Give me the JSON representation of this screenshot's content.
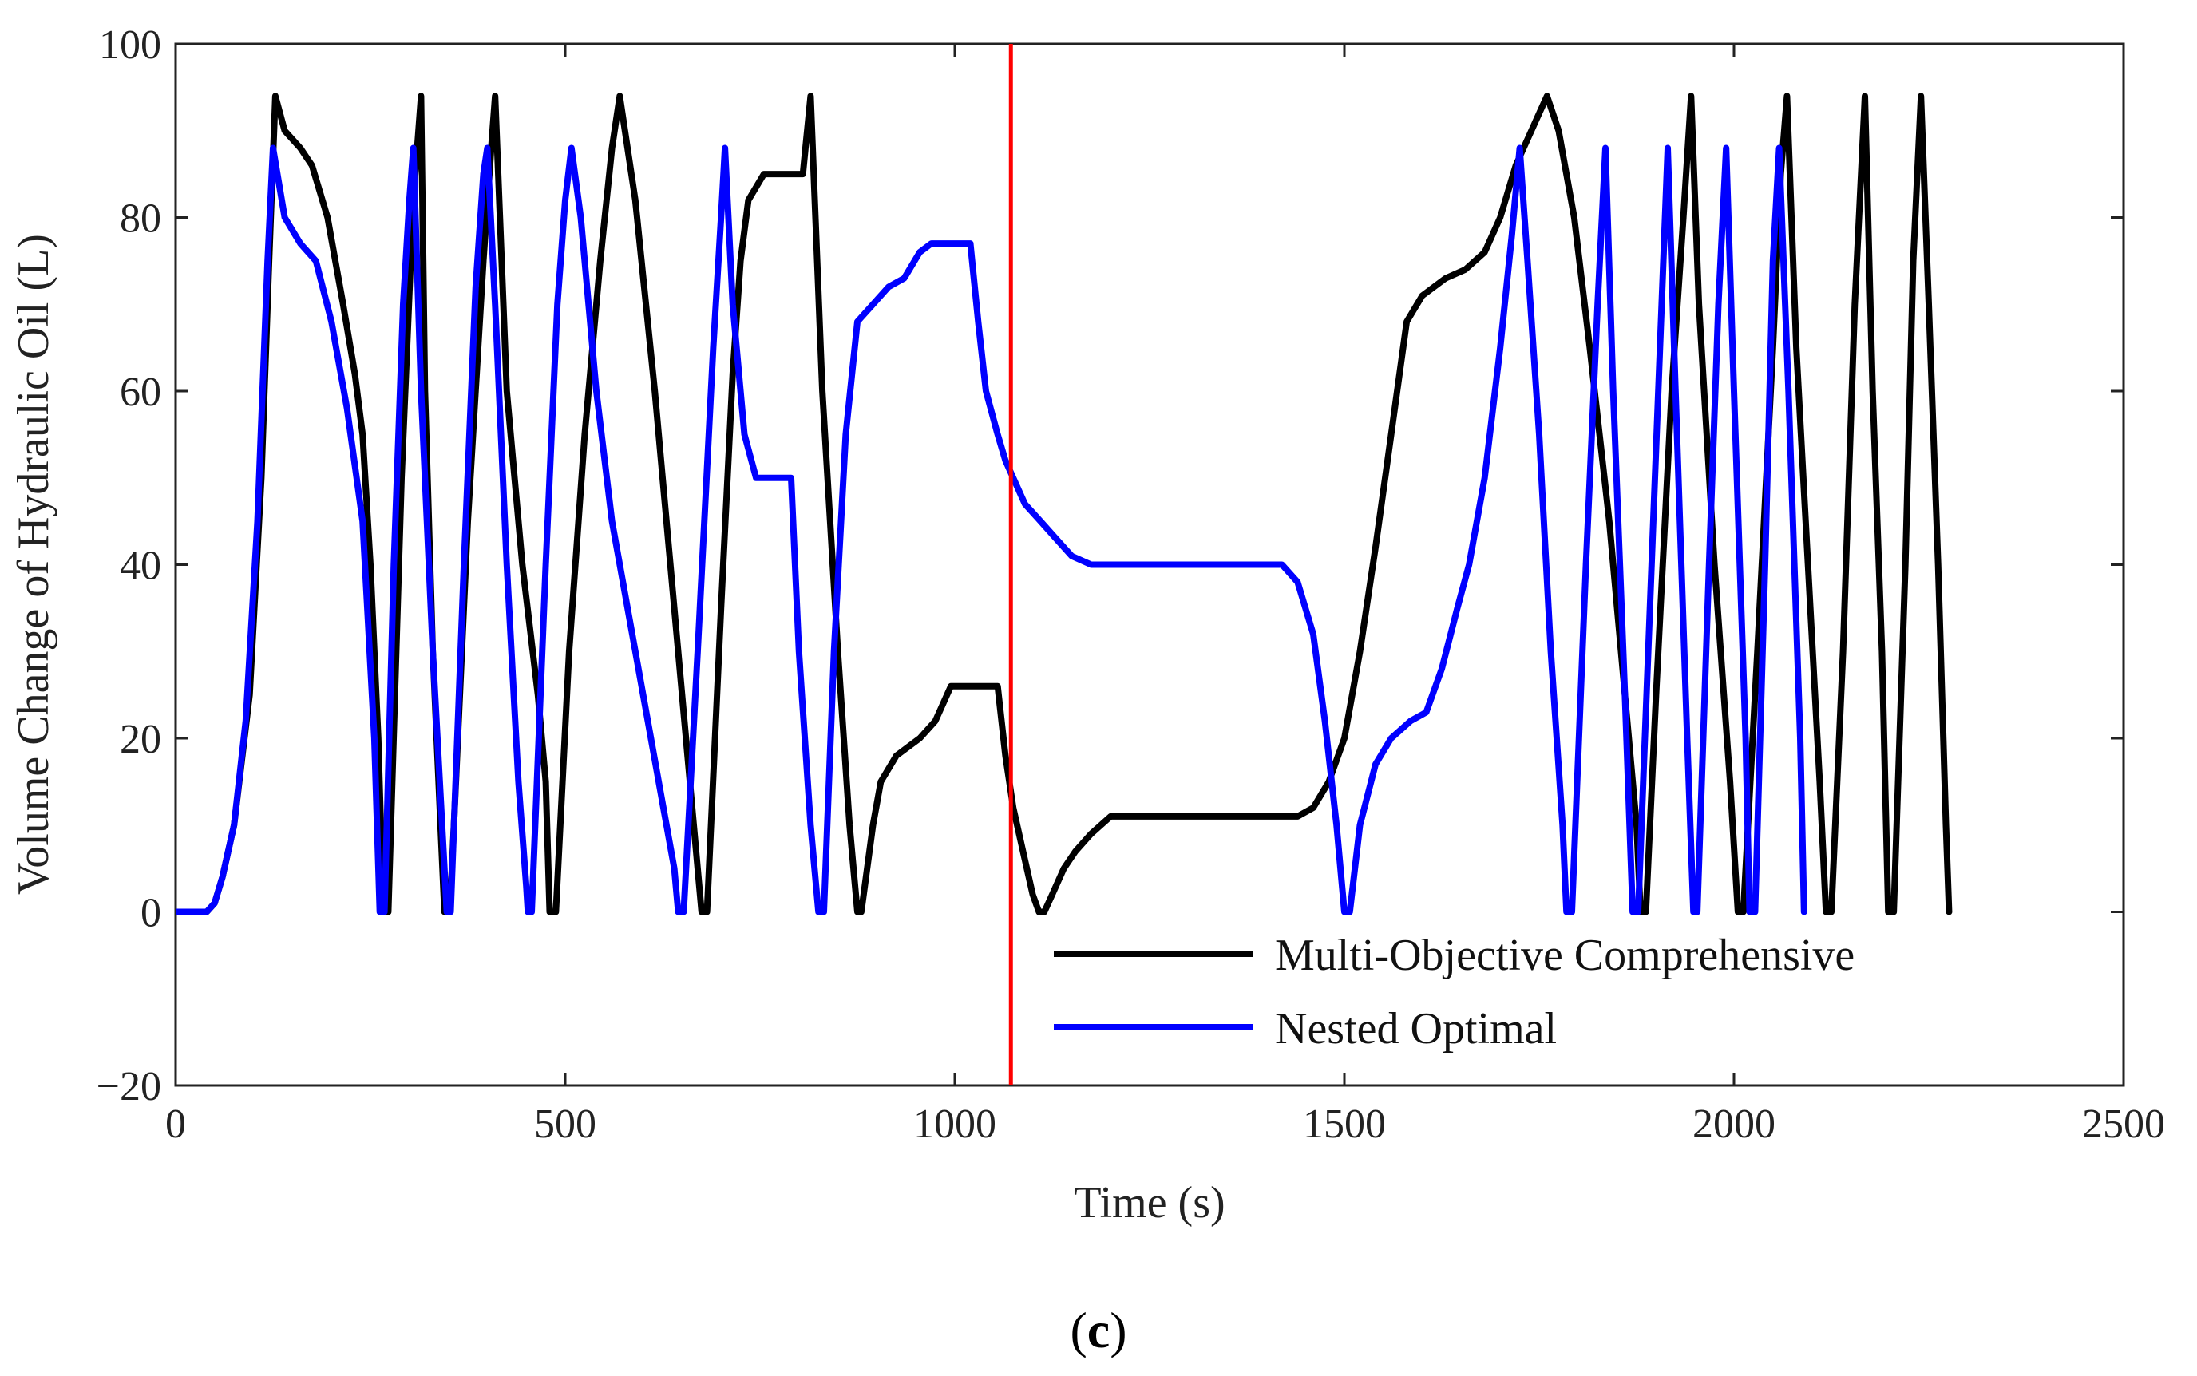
{
  "chart_data": {
    "type": "line",
    "title": "",
    "xlabel": "Time (s)",
    "ylabel": "Volume Change of Hydraulic Oil (L)",
    "xlim": [
      0,
      2500
    ],
    "ylim": [
      -20,
      100
    ],
    "xticks": [
      0,
      500,
      1000,
      1500,
      2000,
      2500
    ],
    "yticks": [
      -20,
      0,
      20,
      40,
      60,
      80,
      100
    ],
    "xtick_labels": [
      "0",
      "500",
      "1000",
      "1500",
      "2000",
      "2500"
    ],
    "ytick_labels": [
      "−20",
      "0",
      "20",
      "40",
      "60",
      "80",
      "100"
    ],
    "grid": false,
    "legend_position": "bottom-right",
    "vline": {
      "x": 1072,
      "color": "#ff0000"
    },
    "caption_bold": "c",
    "caption_parts": [
      "(",
      ")"
    ],
    "series": [
      {
        "name": "Multi-Objective Comprehensive",
        "color": "#000000",
        "points": [
          [
            0,
            0
          ],
          [
            40,
            0
          ],
          [
            50,
            1
          ],
          [
            60,
            4
          ],
          [
            75,
            10
          ],
          [
            95,
            25
          ],
          [
            110,
            50
          ],
          [
            120,
            75
          ],
          [
            128,
            94
          ],
          [
            140,
            90
          ],
          [
            160,
            88
          ],
          [
            175,
            86
          ],
          [
            195,
            80
          ],
          [
            215,
            70
          ],
          [
            230,
            62
          ],
          [
            240,
            55
          ],
          [
            250,
            40
          ],
          [
            260,
            20
          ],
          [
            265,
            5
          ],
          [
            268,
            0
          ],
          [
            273,
            0
          ],
          [
            290,
            50
          ],
          [
            305,
            82
          ],
          [
            315,
            94
          ],
          [
            320,
            60
          ],
          [
            330,
            30
          ],
          [
            340,
            10
          ],
          [
            345,
            0
          ],
          [
            352,
            0
          ],
          [
            375,
            45
          ],
          [
            395,
            75
          ],
          [
            405,
            88
          ],
          [
            410,
            94
          ],
          [
            425,
            60
          ],
          [
            445,
            40
          ],
          [
            465,
            25
          ],
          [
            475,
            15
          ],
          [
            480,
            0
          ],
          [
            488,
            0
          ],
          [
            505,
            30
          ],
          [
            525,
            55
          ],
          [
            545,
            75
          ],
          [
            560,
            88
          ],
          [
            570,
            94
          ],
          [
            590,
            82
          ],
          [
            615,
            60
          ],
          [
            640,
            35
          ],
          [
            665,
            10
          ],
          [
            675,
            0
          ],
          [
            682,
            0
          ],
          [
            700,
            35
          ],
          [
            715,
            62
          ],
          [
            725,
            75
          ],
          [
            735,
            82
          ],
          [
            755,
            85
          ],
          [
            790,
            85
          ],
          [
            805,
            85
          ],
          [
            815,
            94
          ],
          [
            830,
            60
          ],
          [
            850,
            30
          ],
          [
            865,
            10
          ],
          [
            875,
            0
          ],
          [
            880,
            0
          ],
          [
            895,
            10
          ],
          [
            905,
            15
          ],
          [
            925,
            18
          ],
          [
            955,
            20
          ],
          [
            975,
            22
          ],
          [
            995,
            26
          ],
          [
            1015,
            26
          ],
          [
            1040,
            26
          ],
          [
            1055,
            26
          ],
          [
            1065,
            18
          ],
          [
            1075,
            12
          ],
          [
            1090,
            6
          ],
          [
            1100,
            2
          ],
          [
            1108,
            0
          ],
          [
            1115,
            0
          ],
          [
            1125,
            2
          ],
          [
            1140,
            5
          ],
          [
            1155,
            7
          ],
          [
            1175,
            9
          ],
          [
            1200,
            11
          ],
          [
            1230,
            11
          ],
          [
            1300,
            11
          ],
          [
            1400,
            11
          ],
          [
            1440,
            11
          ],
          [
            1460,
            12
          ],
          [
            1480,
            15
          ],
          [
            1500,
            20
          ],
          [
            1520,
            30
          ],
          [
            1540,
            42
          ],
          [
            1560,
            55
          ],
          [
            1580,
            68
          ],
          [
            1600,
            71
          ],
          [
            1630,
            73
          ],
          [
            1655,
            74
          ],
          [
            1680,
            76
          ],
          [
            1700,
            80
          ],
          [
            1720,
            86
          ],
          [
            1745,
            91
          ],
          [
            1760,
            94
          ],
          [
            1775,
            90
          ],
          [
            1795,
            80
          ],
          [
            1815,
            65
          ],
          [
            1840,
            45
          ],
          [
            1860,
            25
          ],
          [
            1875,
            10
          ],
          [
            1880,
            0
          ],
          [
            1887,
            0
          ],
          [
            1900,
            25
          ],
          [
            1920,
            60
          ],
          [
            1935,
            80
          ],
          [
            1945,
            94
          ],
          [
            1955,
            70
          ],
          [
            1975,
            40
          ],
          [
            1995,
            15
          ],
          [
            2005,
            0
          ],
          [
            2012,
            0
          ],
          [
            2030,
            30
          ],
          [
            2050,
            65
          ],
          [
            2060,
            85
          ],
          [
            2068,
            94
          ],
          [
            2080,
            65
          ],
          [
            2095,
            40
          ],
          [
            2110,
            15
          ],
          [
            2118,
            0
          ],
          [
            2125,
            0
          ],
          [
            2140,
            30
          ],
          [
            2155,
            70
          ],
          [
            2168,
            94
          ],
          [
            2178,
            60
          ],
          [
            2190,
            30
          ],
          [
            2198,
            0
          ],
          [
            2205,
            0
          ],
          [
            2220,
            40
          ],
          [
            2230,
            75
          ],
          [
            2240,
            94
          ],
          [
            2250,
            70
          ],
          [
            2262,
            40
          ],
          [
            2272,
            10
          ],
          [
            2276,
            0
          ]
        ]
      },
      {
        "name": "Nested Optimal",
        "color": "#0000ff",
        "points": [
          [
            0,
            0
          ],
          [
            40,
            0
          ],
          [
            50,
            1
          ],
          [
            60,
            4
          ],
          [
            75,
            10
          ],
          [
            90,
            22
          ],
          [
            105,
            45
          ],
          [
            118,
            75
          ],
          [
            125,
            88
          ],
          [
            140,
            80
          ],
          [
            160,
            77
          ],
          [
            180,
            75
          ],
          [
            200,
            68
          ],
          [
            220,
            58
          ],
          [
            240,
            45
          ],
          [
            255,
            20
          ],
          [
            262,
            0
          ],
          [
            268,
            0
          ],
          [
            280,
            40
          ],
          [
            292,
            70
          ],
          [
            300,
            82
          ],
          [
            305,
            88
          ],
          [
            315,
            60
          ],
          [
            330,
            30
          ],
          [
            345,
            5
          ],
          [
            348,
            0
          ],
          [
            353,
            0
          ],
          [
            370,
            40
          ],
          [
            385,
            72
          ],
          [
            395,
            85
          ],
          [
            400,
            88
          ],
          [
            410,
            70
          ],
          [
            425,
            40
          ],
          [
            440,
            15
          ],
          [
            450,
            3
          ],
          [
            452,
            0
          ],
          [
            457,
            0
          ],
          [
            475,
            40
          ],
          [
            490,
            70
          ],
          [
            500,
            82
          ],
          [
            508,
            88
          ],
          [
            520,
            80
          ],
          [
            540,
            60
          ],
          [
            560,
            45
          ],
          [
            580,
            35
          ],
          [
            600,
            25
          ],
          [
            620,
            15
          ],
          [
            640,
            5
          ],
          [
            645,
            0
          ],
          [
            652,
            0
          ],
          [
            670,
            30
          ],
          [
            690,
            65
          ],
          [
            700,
            80
          ],
          [
            705,
            88
          ],
          [
            715,
            70
          ],
          [
            730,
            55
          ],
          [
            745,
            50
          ],
          [
            760,
            50
          ],
          [
            780,
            50
          ],
          [
            790,
            50
          ],
          [
            800,
            30
          ],
          [
            815,
            10
          ],
          [
            825,
            0
          ],
          [
            832,
            0
          ],
          [
            845,
            30
          ],
          [
            860,
            55
          ],
          [
            875,
            68
          ],
          [
            895,
            70
          ],
          [
            915,
            72
          ],
          [
            935,
            73
          ],
          [
            955,
            76
          ],
          [
            970,
            77
          ],
          [
            990,
            77
          ],
          [
            1010,
            77
          ],
          [
            1020,
            77
          ],
          [
            1030,
            68
          ],
          [
            1040,
            60
          ],
          [
            1055,
            55
          ],
          [
            1065,
            52
          ],
          [
            1075,
            50
          ],
          [
            1090,
            47
          ],
          [
            1110,
            45
          ],
          [
            1130,
            43
          ],
          [
            1150,
            41
          ],
          [
            1175,
            40
          ],
          [
            1200,
            40
          ],
          [
            1300,
            40
          ],
          [
            1400,
            40
          ],
          [
            1420,
            40
          ],
          [
            1440,
            38
          ],
          [
            1460,
            32
          ],
          [
            1475,
            22
          ],
          [
            1490,
            10
          ],
          [
            1500,
            0
          ],
          [
            1507,
            0
          ],
          [
            1520,
            10
          ],
          [
            1540,
            17
          ],
          [
            1560,
            20
          ],
          [
            1585,
            22
          ],
          [
            1605,
            23
          ],
          [
            1625,
            28
          ],
          [
            1645,
            35
          ],
          [
            1660,
            40
          ],
          [
            1680,
            50
          ],
          [
            1700,
            65
          ],
          [
            1715,
            78
          ],
          [
            1725,
            88
          ],
          [
            1735,
            75
          ],
          [
            1750,
            55
          ],
          [
            1765,
            30
          ],
          [
            1780,
            10
          ],
          [
            1785,
            0
          ],
          [
            1792,
            0
          ],
          [
            1810,
            40
          ],
          [
            1825,
            70
          ],
          [
            1835,
            88
          ],
          [
            1845,
            60
          ],
          [
            1860,
            25
          ],
          [
            1870,
            0
          ],
          [
            1877,
            0
          ],
          [
            1890,
            30
          ],
          [
            1905,
            65
          ],
          [
            1915,
            88
          ],
          [
            1925,
            60
          ],
          [
            1940,
            20
          ],
          [
            1948,
            0
          ],
          [
            1953,
            0
          ],
          [
            1968,
            40
          ],
          [
            1980,
            70
          ],
          [
            1990,
            88
          ],
          [
            2000,
            60
          ],
          [
            2015,
            20
          ],
          [
            2020,
            0
          ],
          [
            2027,
            0
          ],
          [
            2040,
            40
          ],
          [
            2050,
            75
          ],
          [
            2058,
            88
          ],
          [
            2070,
            60
          ],
          [
            2085,
            20
          ],
          [
            2090,
            0
          ]
        ]
      }
    ]
  }
}
